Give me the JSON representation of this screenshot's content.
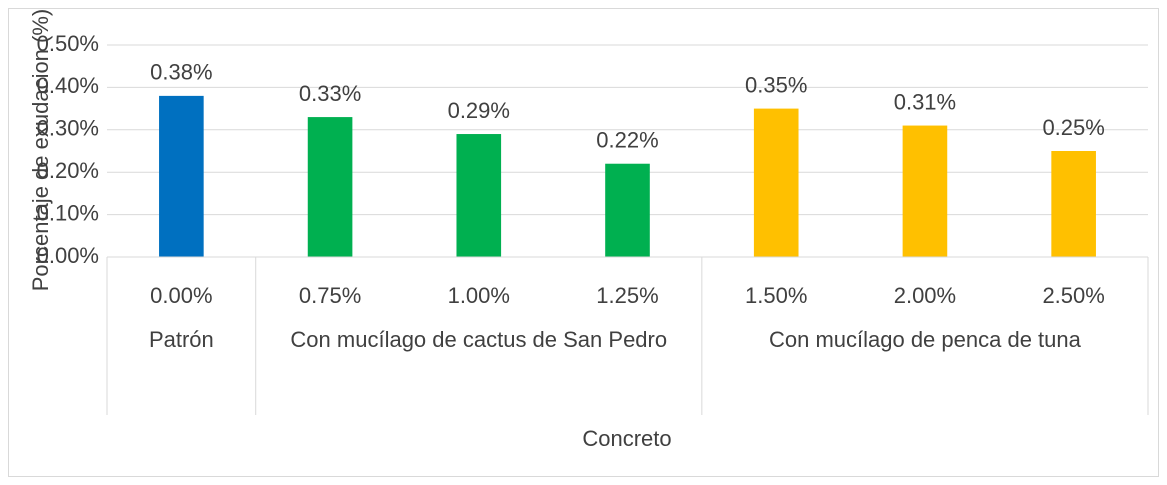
{
  "chart_data": {
    "type": "bar",
    "x_label": "Concreto",
    "y_label": "Porcentaje de exudacion (%)",
    "ylim": [
      0,
      0.5
    ],
    "yticks": [
      {
        "value": 0,
        "label": "0.00%"
      },
      {
        "value": 0.1,
        "label": "0.10%"
      },
      {
        "value": 0.2,
        "label": "0.20%"
      },
      {
        "value": 0.3,
        "label": "0.30%"
      },
      {
        "value": 0.4,
        "label": "0.40%"
      },
      {
        "value": 0.5,
        "label": "0.50%"
      }
    ],
    "grid": true,
    "groups": [
      {
        "name": "Patrón",
        "color": "#0070c0",
        "categories": [
          "0.00%"
        ],
        "values": [
          0.38
        ],
        "value_labels": [
          "0.38%"
        ]
      },
      {
        "name": "Con mucílago de cactus de San Pedro",
        "color": "#00b050",
        "categories": [
          "0.75%",
          "1.00%",
          "1.25%"
        ],
        "values": [
          0.33,
          0.29,
          0.22
        ],
        "value_labels": [
          "0.33%",
          "0.29%",
          "0.22%"
        ]
      },
      {
        "name": "Con mucílago de penca de tuna",
        "color": "#ffc000",
        "categories": [
          "1.50%",
          "2.00%",
          "2.50%"
        ],
        "values": [
          0.35,
          0.31,
          0.25
        ],
        "value_labels": [
          "0.35%",
          "0.31%",
          "0.25%"
        ]
      }
    ]
  }
}
